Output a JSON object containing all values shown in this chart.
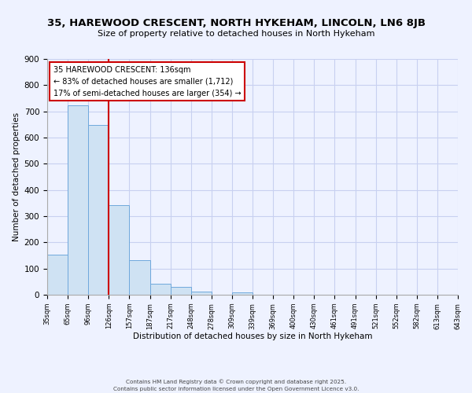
{
  "title": "35, HAREWOOD CRESCENT, NORTH HYKEHAM, LINCOLN, LN6 8JB",
  "subtitle": "Size of property relative to detached houses in North Hykeham",
  "xlabel": "Distribution of detached houses by size in North Hykeham",
  "ylabel": "Number of detached properties",
  "bar_values": [
    153,
    722,
    648,
    343,
    133,
    41,
    31,
    12,
    0,
    8,
    0,
    0,
    0,
    0,
    0,
    0,
    0,
    0,
    0,
    0
  ],
  "bar_labels": [
    "35sqm",
    "65sqm",
    "96sqm",
    "126sqm",
    "157sqm",
    "187sqm",
    "217sqm",
    "248sqm",
    "278sqm",
    "309sqm",
    "339sqm",
    "369sqm",
    "400sqm",
    "430sqm",
    "461sqm",
    "491sqm",
    "521sqm",
    "552sqm",
    "582sqm",
    "613sqm",
    "643sqm"
  ],
  "bar_color": "#cfe2f3",
  "bar_edge_color": "#6fa8dc",
  "vline_color": "#cc0000",
  "annotation_title": "35 HAREWOOD CRESCENT: 136sqm",
  "annotation_line1": "← 83% of detached houses are smaller (1,712)",
  "annotation_line2": "17% of semi-detached houses are larger (354) →",
  "ylim": [
    0,
    900
  ],
  "yticks": [
    0,
    100,
    200,
    300,
    400,
    500,
    600,
    700,
    800,
    900
  ],
  "background_color": "#eef2ff",
  "grid_color": "#c8d0f0",
  "footer1": "Contains HM Land Registry data © Crown copyright and database right 2025.",
  "footer2": "Contains public sector information licensed under the Open Government Licence v3.0."
}
